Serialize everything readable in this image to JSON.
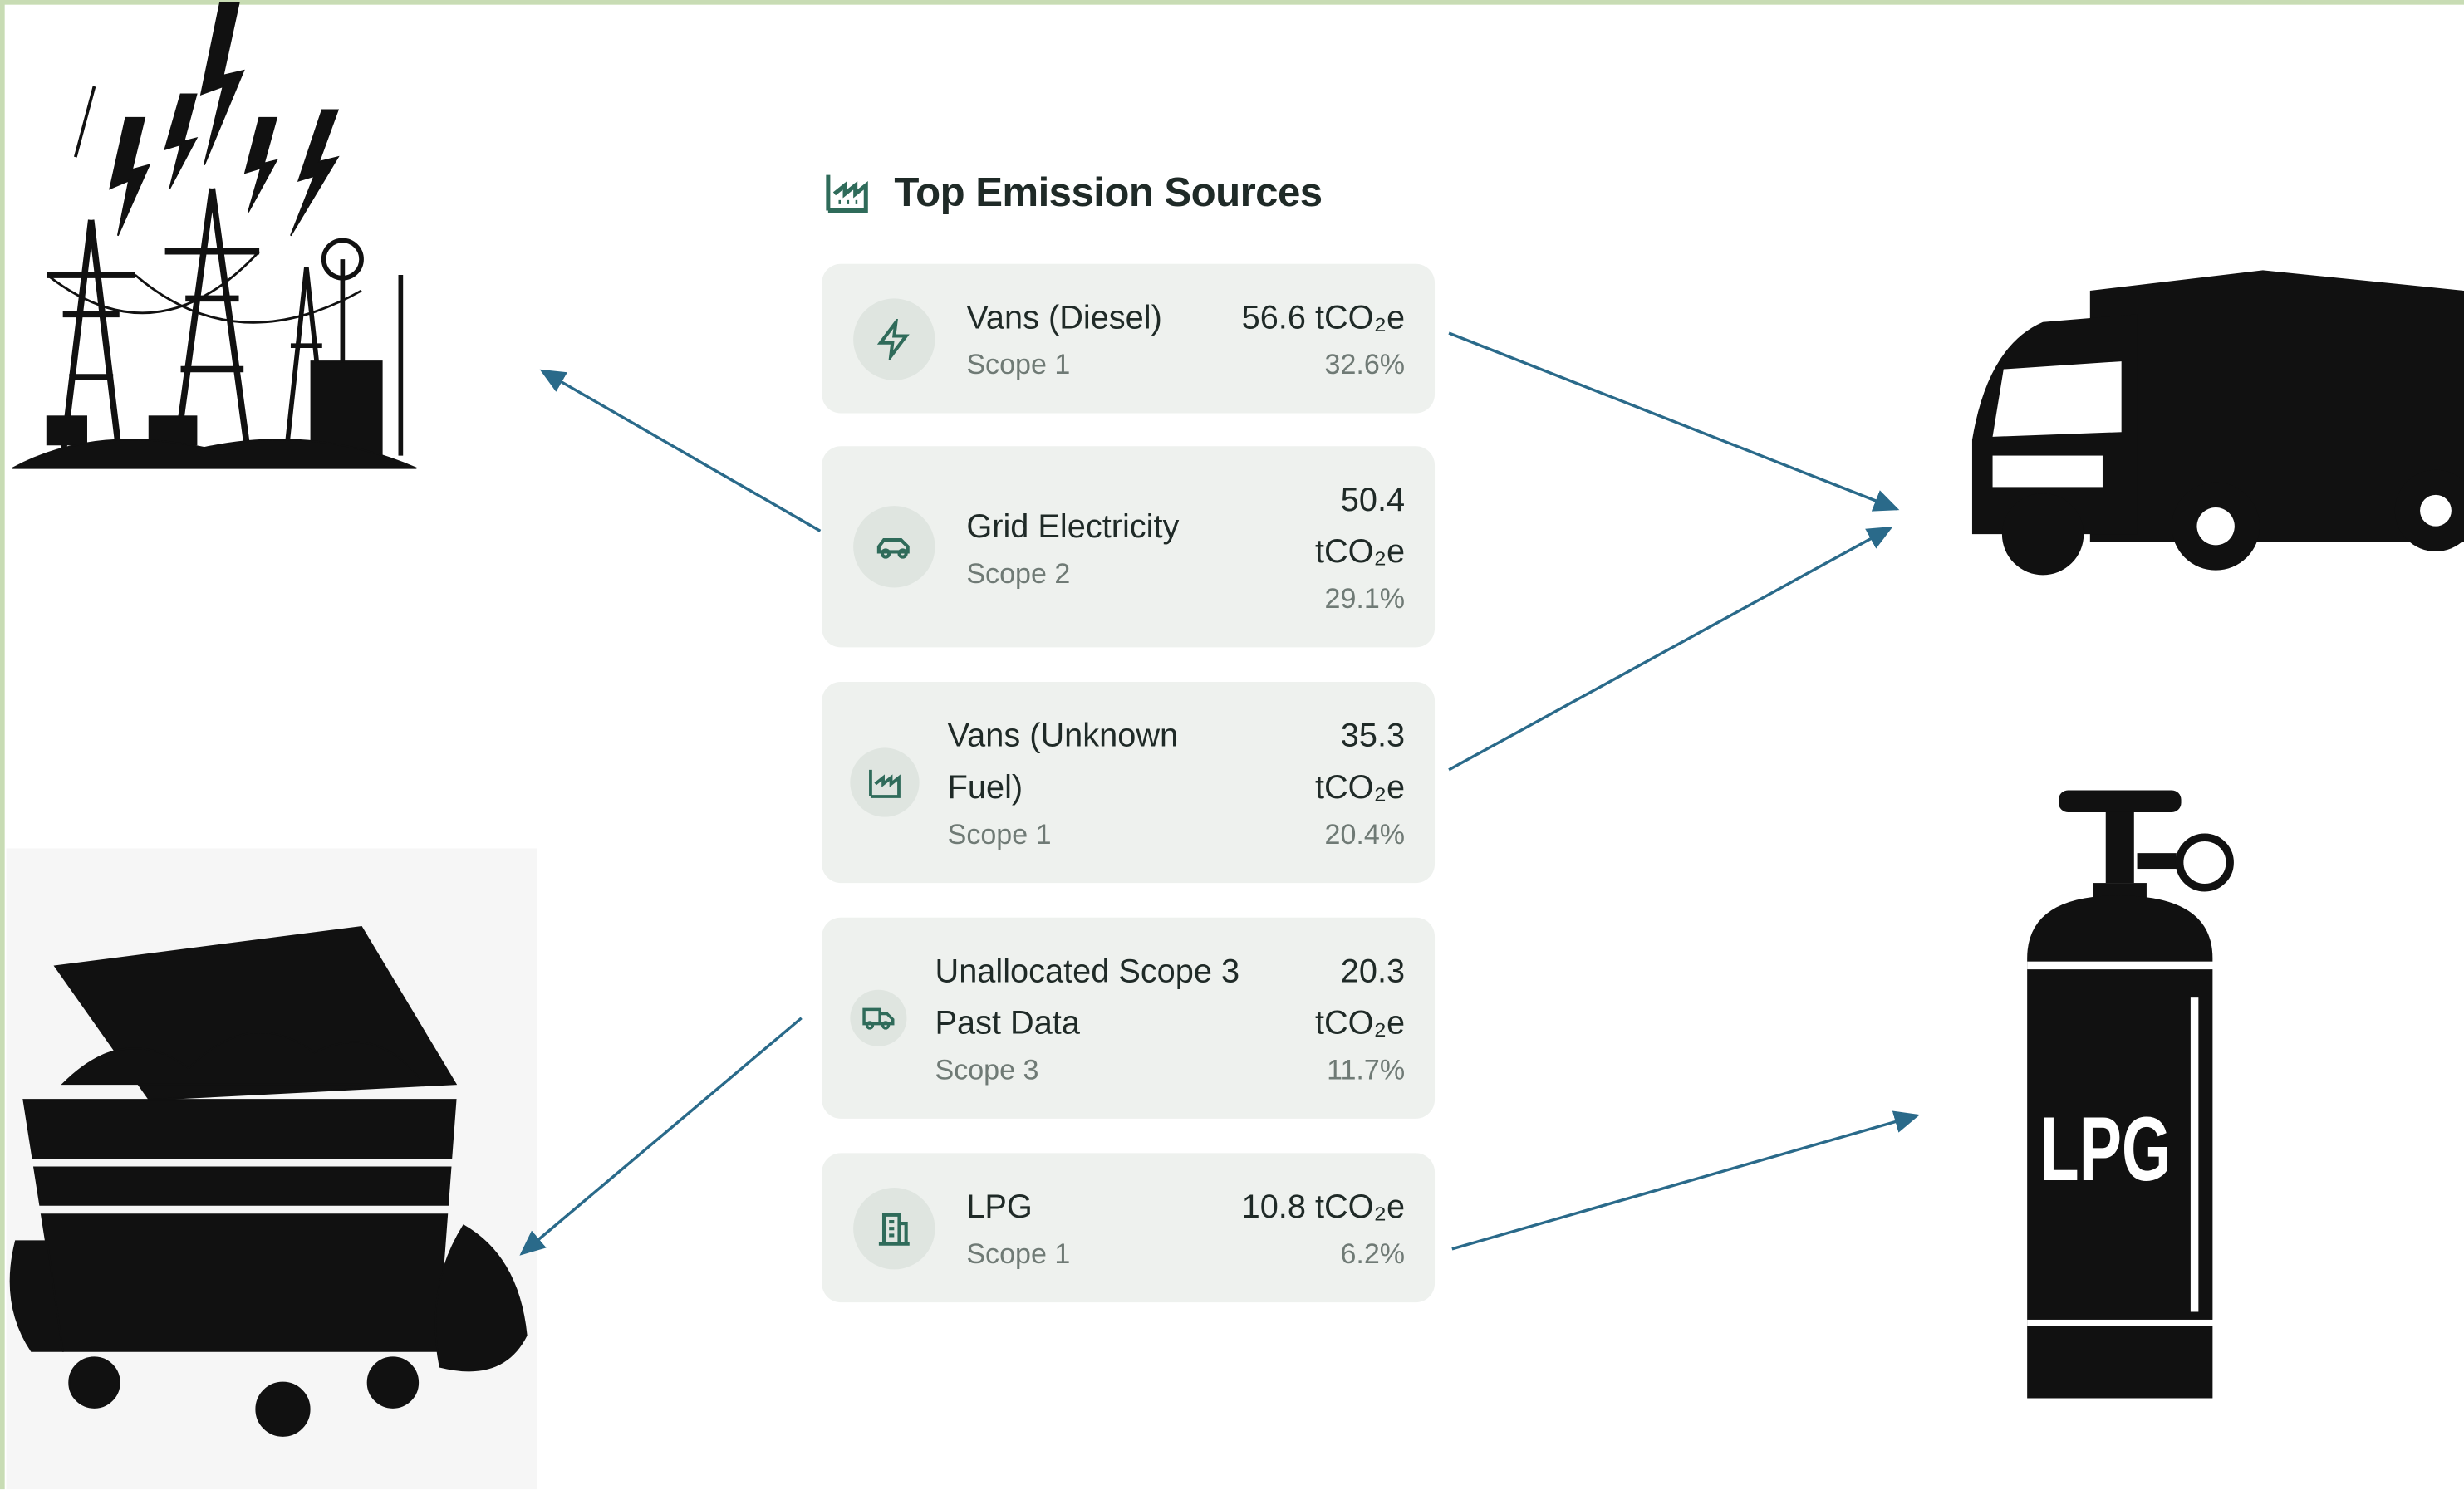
{
  "header": {
    "title": "Top Emission Sources"
  },
  "sources": [
    {
      "name": "Vans (Diesel)",
      "value": "56.6 tCO₂e",
      "scope": "Scope 1",
      "share": "32.6%"
    },
    {
      "name": "Grid Electricity",
      "value": "50.4 tCO₂e",
      "scope": "Scope 2",
      "share": "29.1%"
    },
    {
      "name": "Vans (Unknown Fuel)",
      "value": "35.3 tCO₂e",
      "scope": "Scope 1",
      "share": "20.4%"
    },
    {
      "name": "Unallocated Scope 3 Past Data",
      "value": "20.3 tCO₂e",
      "scope": "Scope 3",
      "share": "11.7%"
    },
    {
      "name": "LPG",
      "value": "10.8 tCO₂e",
      "scope": "Scope 1",
      "share": "6.2%"
    }
  ],
  "illustrations": {
    "cylinder_label": "LPG"
  }
}
